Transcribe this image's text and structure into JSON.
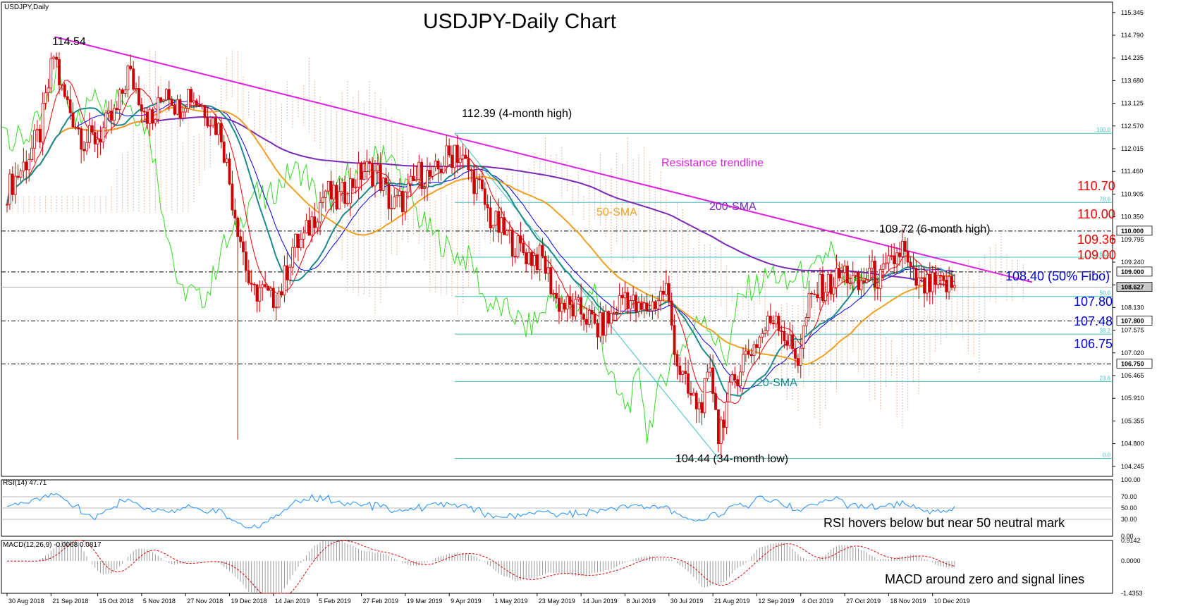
{
  "window": {
    "symbol_label": "USDJPY,Daily"
  },
  "main": {
    "title": "USDJPY-Daily Chart",
    "ylim": [
      104.0,
      115.6
    ],
    "price_ticks": [
      "115.345",
      "114.790",
      "114.235",
      "113.680",
      "113.125",
      "112.570",
      "112.015",
      "111.460",
      "110.905",
      "110.350",
      "109.795",
      "109.240",
      "108.685",
      "108.130",
      "107.575",
      "107.020",
      "106.465",
      "105.910",
      "105.355",
      "104.800",
      "104.245"
    ],
    "tick_values": [
      115.345,
      114.79,
      114.235,
      113.68,
      113.125,
      112.57,
      112.015,
      111.46,
      110.905,
      110.35,
      109.795,
      109.24,
      108.685,
      108.13,
      107.575,
      107.02,
      106.465,
      105.91,
      105.355,
      104.8,
      104.245
    ],
    "price_boxes": [
      {
        "label": "110.000",
        "value": 110.0,
        "bg": "#ffffff",
        "fg": "#000000"
      },
      {
        "label": "109.000",
        "value": 109.0,
        "bg": "#ffffff",
        "fg": "#000000"
      },
      {
        "label": "108.627",
        "value": 108.627,
        "bg": "#c8c8c8",
        "fg": "#000000"
      },
      {
        "label": "107.800",
        "value": 107.8,
        "bg": "#ffffff",
        "fg": "#000000"
      },
      {
        "label": "106.750",
        "value": 106.75,
        "bg": "#ffffff",
        "fg": "#000000"
      }
    ],
    "x_labels": [
      "30 Aug 2018",
      "21 Sep 2018",
      "15 Oct 2018",
      "5 Nov 2018",
      "27 Nov 2018",
      "19 Dec 2018",
      "14 Jan 2019",
      "5 Feb 2019",
      "27 Feb 2019",
      "19 Mar 2019",
      "9 Apr 2019",
      "1 May 2019",
      "23 May 2019",
      "14 Jun 2019",
      "8 Jul 2019",
      "30 Jul 2019",
      "21 Aug 2019",
      "12 Sep 2019",
      "4 Oct 2019",
      "27 Oct 2019",
      "18 Nov 2019",
      "10 Dec 2019"
    ],
    "x_label_index": [
      0,
      16,
      33,
      49,
      65,
      81,
      97,
      113,
      129,
      145,
      161,
      177,
      193,
      209,
      225,
      241,
      257,
      273,
      289,
      305,
      321,
      337
    ],
    "fib_levels": [
      {
        "label": "100.0",
        "value": 112.39
      },
      {
        "label": "78.6",
        "value": 110.7
      },
      {
        "label": "61.8",
        "value": 109.36
      },
      {
        "label": "50.0",
        "value": 108.4
      },
      {
        "label": "38.2",
        "value": 107.48
      },
      {
        "label": "23.6",
        "value": 106.32
      },
      {
        "label": "0.0",
        "value": 104.44
      }
    ],
    "horizontal_levels": [
      110.0,
      109.0,
      107.8,
      106.75
    ],
    "annotations": {
      "high_114": "114.54",
      "high_112": "112.39 (4-month high)",
      "trendline": "Resistance trendline",
      "sma200": "200-SMA",
      "sma50": "50-SMA",
      "sma20": "20-SMA",
      "high_109": "109.72 (6-month high)",
      "low_104": "104.44 (34-month low)",
      "lvl_110_70": "110.70",
      "lvl_110_00": "110.00",
      "lvl_109_36": "109.36",
      "lvl_109_00": "109.00",
      "lvl_108_40": "108.40 (50% Fibo)",
      "lvl_107_80": "107.80",
      "lvl_107_48": "107.48",
      "lvl_106_75": "106.75"
    },
    "colors": {
      "trendline": "#e020e0",
      "sma200": "#7a2ab5",
      "sma50": "#f0a020",
      "sma20": "#1a8a8a",
      "tenkan": "#ff0000",
      "kijun": "#0000ff",
      "chikou": "#33dd22",
      "candle": "#cc0000",
      "cloud_bull": "#f2a070",
      "cloud_bear": "#c8a0c8",
      "fib": "#40c0c0",
      "red_text": "#ff0000",
      "blue_text": "#0000dd"
    }
  },
  "rsi": {
    "label": "RSI(14) 47.71",
    "ticks": [
      "100.00",
      "70.00",
      "50.00",
      "30.00",
      "0.00"
    ],
    "tick_values": [
      100,
      70,
      50,
      30,
      0
    ],
    "caption": "RSI hovers below but near 50 neutral mark"
  },
  "macd": {
    "label": "MACD(12,26,9) -0.0068 0.0817",
    "ticks": [
      "0.9142",
      "0.0000",
      "-1.4353"
    ],
    "tick_values": [
      0.9142,
      0,
      -1.4353
    ],
    "caption": "MACD around zero and signal lines"
  },
  "chart_data": {
    "type": "candlestick",
    "title": "USDJPY-Daily Chart",
    "x_start": "30 Aug 2018",
    "x_end": "10 Dec 2019",
    "close_anchors": [
      [
        0,
        111.0
      ],
      [
        6,
        111.6
      ],
      [
        12,
        112.4
      ],
      [
        17,
        114.3
      ],
      [
        20,
        113.4
      ],
      [
        24,
        112.8
      ],
      [
        28,
        112.2
      ],
      [
        33,
        112.3
      ],
      [
        40,
        112.9
      ],
      [
        44,
        113.9
      ],
      [
        49,
        113.2
      ],
      [
        53,
        112.6
      ],
      [
        58,
        113.6
      ],
      [
        62,
        113.0
      ],
      [
        66,
        113.4
      ],
      [
        72,
        113.0
      ],
      [
        78,
        112.4
      ],
      [
        82,
        110.8
      ],
      [
        86,
        109.5
      ],
      [
        89,
        108.4
      ],
      [
        92,
        108.6
      ],
      [
        96,
        108.3
      ],
      [
        100,
        108.6
      ],
      [
        104,
        109.6
      ],
      [
        108,
        109.8
      ],
      [
        112,
        110.4
      ],
      [
        116,
        111.0
      ],
      [
        120,
        110.7
      ],
      [
        126,
        111.2
      ],
      [
        130,
        111.5
      ],
      [
        135,
        111.4
      ],
      [
        140,
        110.6
      ],
      [
        145,
        110.8
      ],
      [
        150,
        111.4
      ],
      [
        155,
        111.3
      ],
      [
        160,
        111.8
      ],
      [
        164,
        111.9
      ],
      [
        168,
        111.5
      ],
      [
        172,
        111.0
      ],
      [
        176,
        110.3
      ],
      [
        180,
        110.0
      ],
      [
        186,
        109.6
      ],
      [
        190,
        109.4
      ],
      [
        195,
        109.3
      ],
      [
        200,
        108.3
      ],
      [
        205,
        108.1
      ],
      [
        210,
        108.0
      ],
      [
        215,
        107.6
      ],
      [
        220,
        107.9
      ],
      [
        225,
        108.5
      ],
      [
        230,
        108.0
      ],
      [
        235,
        108.2
      ],
      [
        240,
        108.6
      ],
      [
        244,
        106.8
      ],
      [
        248,
        106.0
      ],
      [
        252,
        105.7
      ],
      [
        256,
        106.4
      ],
      [
        260,
        105.3
      ],
      [
        264,
        106.2
      ],
      [
        268,
        106.9
      ],
      [
        272,
        107.2
      ],
      [
        276,
        107.6
      ],
      [
        280,
        108.0
      ],
      [
        284,
        107.3
      ],
      [
        288,
        106.9
      ],
      [
        292,
        108.2
      ],
      [
        296,
        108.6
      ],
      [
        300,
        108.7
      ],
      [
        305,
        109.0
      ],
      [
        310,
        108.6
      ],
      [
        314,
        109.0
      ],
      [
        318,
        108.8
      ],
      [
        322,
        109.2
      ],
      [
        326,
        109.6
      ],
      [
        329,
        108.9
      ],
      [
        333,
        108.6
      ],
      [
        337,
        108.65
      ]
    ],
    "marked_points": [
      {
        "label": "114.54",
        "x": "26 Sep 2018",
        "y": 114.54
      },
      {
        "label": "112.39 (4-month high)",
        "x": "24 Apr 2019",
        "y": 112.39
      },
      {
        "label": "104.44 (34-month low)",
        "x": "26 Aug 2019",
        "y": 104.44
      },
      {
        "label": "109.72 (6-month high)",
        "x": "3 Dec 2019",
        "y": 109.72
      }
    ],
    "horizontal_levels": [
      110.7,
      110.0,
      109.36,
      109.0,
      108.4,
      107.8,
      107.48,
      106.75
    ],
    "fibonacci": {
      "from": 104.44,
      "to": 112.39,
      "levels": {
        "100.0": 112.39,
        "78.6": 110.7,
        "61.8": 109.36,
        "50.0": 108.4,
        "38.2": 107.48,
        "23.6": 106.32,
        "0.0": 104.44
      }
    },
    "trendline": {
      "name": "Resistance trendline",
      "from": [
        2,
        114.75
      ],
      "to": [
        345,
        108.75
      ]
    },
    "last_price": 108.627,
    "rsi_last": 47.71,
    "macd_last": -0.0068,
    "macd_signal_last": 0.0817
  }
}
